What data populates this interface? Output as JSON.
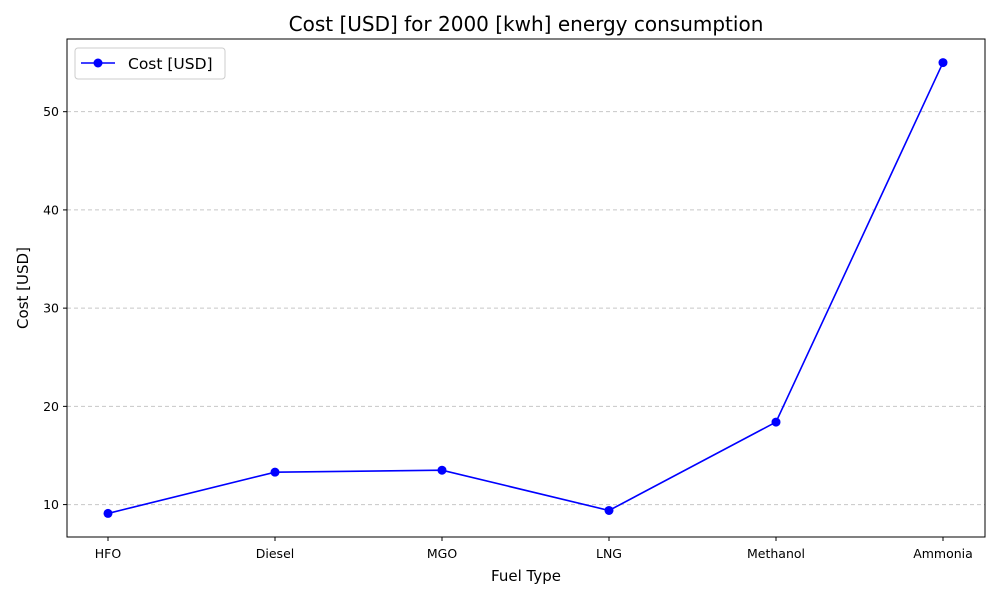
{
  "chart_data": {
    "type": "line",
    "title": "Cost [USD] for 2000 [kwh] energy consumption",
    "xlabel": "Fuel Type",
    "ylabel": "Cost [USD]",
    "categories": [
      "HFO",
      "Diesel",
      "MGO",
      "LNG",
      "Methanol",
      "Ammonia"
    ],
    "series": [
      {
        "name": "Cost [USD]",
        "values": [
          9.1,
          13.3,
          13.5,
          9.4,
          18.4,
          55.0
        ],
        "color": "#0000ff"
      }
    ],
    "yticks": [
      10,
      20,
      30,
      40,
      50
    ],
    "ylim": [
      6.7,
      57.4
    ],
    "grid": {
      "y": true,
      "x": false,
      "style": "dashed",
      "color": "#c8c8c8"
    },
    "legend_position": "top-left"
  }
}
